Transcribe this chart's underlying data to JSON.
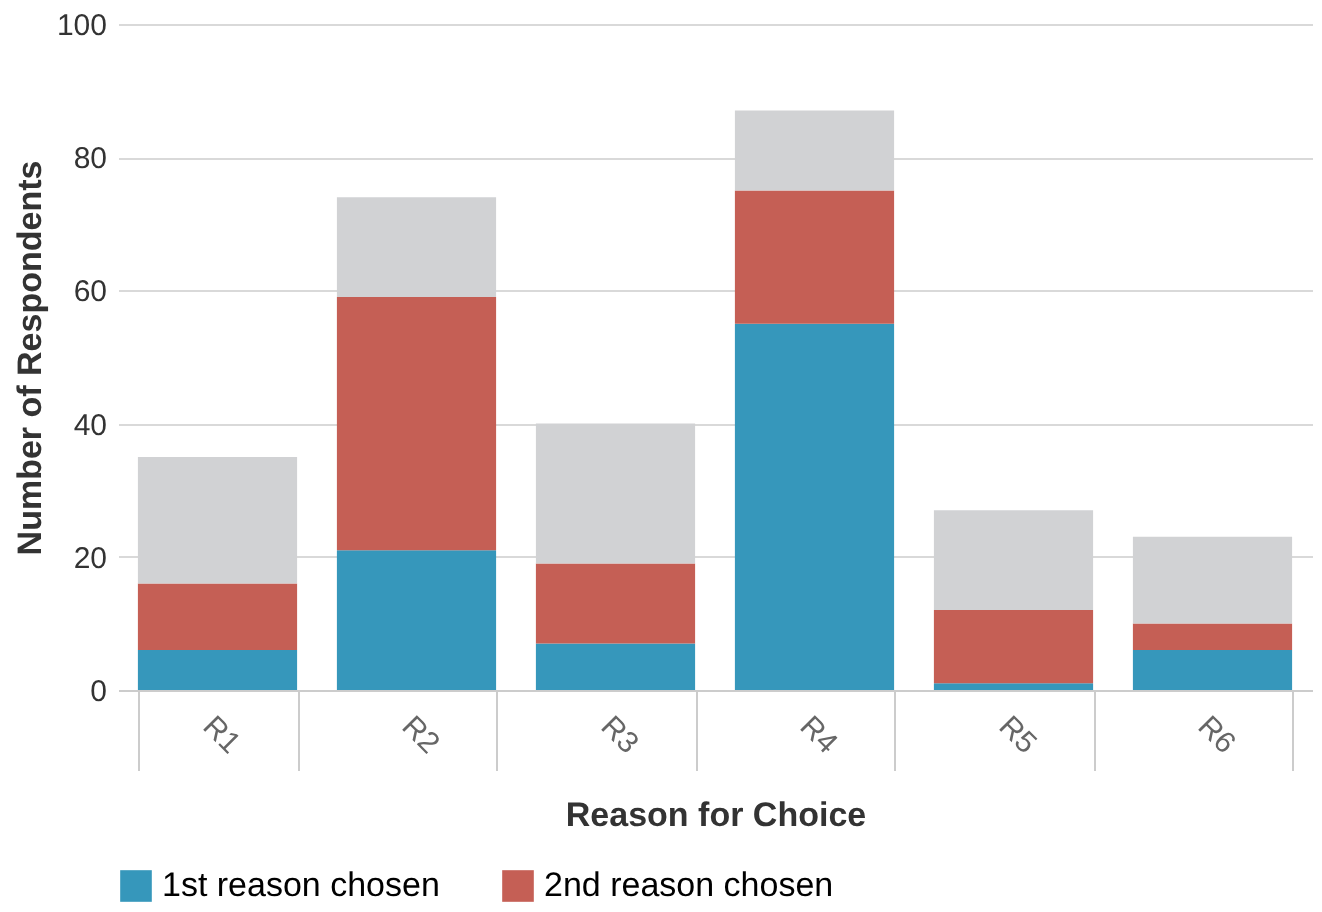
{
  "chart_data": {
    "type": "bar",
    "stacked": true,
    "xlabel": "Reason for Choice",
    "ylabel": "Number of Respondents",
    "categories": [
      "R1",
      "R2",
      "R3",
      "R4",
      "R5",
      "R6"
    ],
    "series": [
      {
        "name": "1st reason chosen",
        "color": "#3697bb",
        "values": [
          6,
          21,
          7,
          55,
          1,
          6
        ]
      },
      {
        "name": "2nd reason chosen",
        "color": "#c55f55",
        "values": [
          10,
          38,
          12,
          20,
          11,
          4
        ]
      },
      {
        "color": "#d1d2d4",
        "values": [
          19,
          15,
          21,
          12,
          15,
          13
        ]
      }
    ],
    "ylim": [
      0,
      100
    ],
    "yticks": [
      0,
      20,
      40,
      60,
      80,
      100
    ],
    "grid": "y",
    "legend": "bottom"
  }
}
